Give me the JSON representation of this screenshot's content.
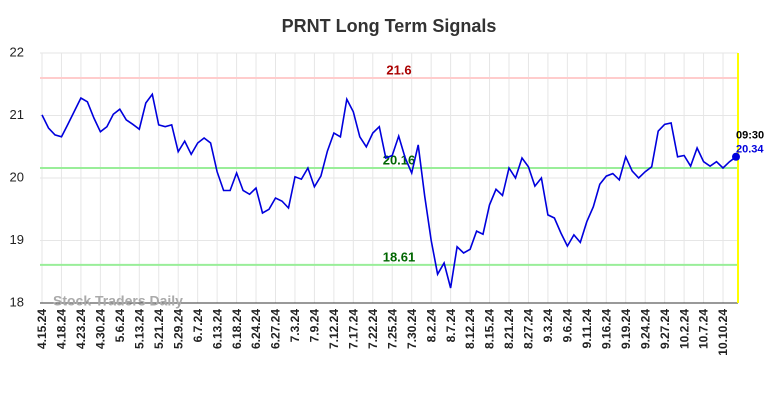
{
  "chart_data": {
    "type": "line",
    "title": "PRNT Long Term Signals",
    "watermark": "Stock Traders Daily",
    "last_time": "09:30",
    "color": "#0000dd",
    "ylim": [
      18,
      22
    ],
    "yticks": [
      18,
      19,
      20,
      21,
      22
    ],
    "grid": true,
    "hlines": [
      {
        "value": 21.6,
        "color": "#ffcccc",
        "label_color": "#aa0000"
      },
      {
        "value": 20.16,
        "color": "#99ee99",
        "label_color": "#006600"
      },
      {
        "value": 18.61,
        "color": "#99ee99",
        "label_color": "#006600"
      }
    ],
    "categories": [
      "4.15.24",
      null,
      null,
      "4.18.24",
      null,
      null,
      "4.23.24",
      null,
      null,
      "4.30.24",
      null,
      null,
      "5.6.24",
      null,
      null,
      "5.13.24",
      null,
      null,
      "5.21.24",
      null,
      null,
      "5.29.24",
      null,
      null,
      "6.7.24",
      null,
      null,
      "6.13.24",
      null,
      null,
      "6.18.24",
      null,
      null,
      "6.24.24",
      null,
      null,
      "6.27.24",
      null,
      null,
      "7.3.24",
      null,
      null,
      "7.9.24",
      null,
      null,
      "7.12.24",
      null,
      null,
      "7.17.24",
      null,
      null,
      "7.22.24",
      null,
      null,
      "7.25.24",
      null,
      null,
      "7.30.24",
      null,
      null,
      "8.2.24",
      null,
      null,
      "8.7.24",
      null,
      null,
      "8.12.24",
      null,
      null,
      "8.15.24",
      null,
      null,
      "8.21.24",
      null,
      null,
      "8.27.24",
      null,
      null,
      "9.3.24",
      null,
      null,
      "9.6.24",
      null,
      null,
      "9.11.24",
      null,
      null,
      "9.16.24",
      null,
      null,
      "9.19.24",
      null,
      null,
      "9.24.24",
      null,
      null,
      "9.27.24",
      null,
      null,
      "10.2.24",
      null,
      null,
      "10.7.24",
      null,
      null,
      "10.10.24",
      null,
      null
    ],
    "values": [
      21.01,
      20.8,
      20.69,
      20.66,
      20.86,
      21.07,
      21.28,
      21.22,
      20.96,
      20.74,
      20.82,
      21.02,
      21.1,
      20.93,
      20.86,
      20.78,
      21.2,
      21.34,
      20.85,
      20.82,
      20.85,
      20.42,
      20.59,
      20.38,
      20.56,
      20.64,
      20.56,
      20.1,
      19.8,
      19.8,
      20.08,
      19.8,
      19.74,
      19.84,
      19.44,
      19.5,
      19.68,
      19.63,
      19.52,
      20.02,
      19.98,
      20.16,
      19.86,
      20.03,
      20.43,
      20.72,
      20.66,
      21.26,
      21.06,
      20.66,
      20.5,
      20.72,
      20.82,
      20.32,
      20.36,
      20.67,
      20.32,
      20.08,
      20.53,
      19.71,
      19.0,
      18.46,
      18.64,
      18.24,
      18.9,
      18.8,
      18.86,
      19.15,
      19.1,
      19.57,
      19.82,
      19.72,
      20.16,
      20.0,
      20.32,
      20.18,
      19.87,
      20.0,
      19.41,
      19.36,
      19.12,
      18.91,
      19.09,
      18.97,
      19.3,
      19.54,
      19.9,
      20.03,
      20.07,
      19.97,
      20.34,
      20.11,
      20.0,
      20.1,
      20.18,
      20.75,
      20.86,
      20.88,
      20.34,
      20.36,
      20.19,
      20.48,
      20.26,
      20.19,
      20.26,
      20.16,
      20.26,
      20.34
    ]
  }
}
